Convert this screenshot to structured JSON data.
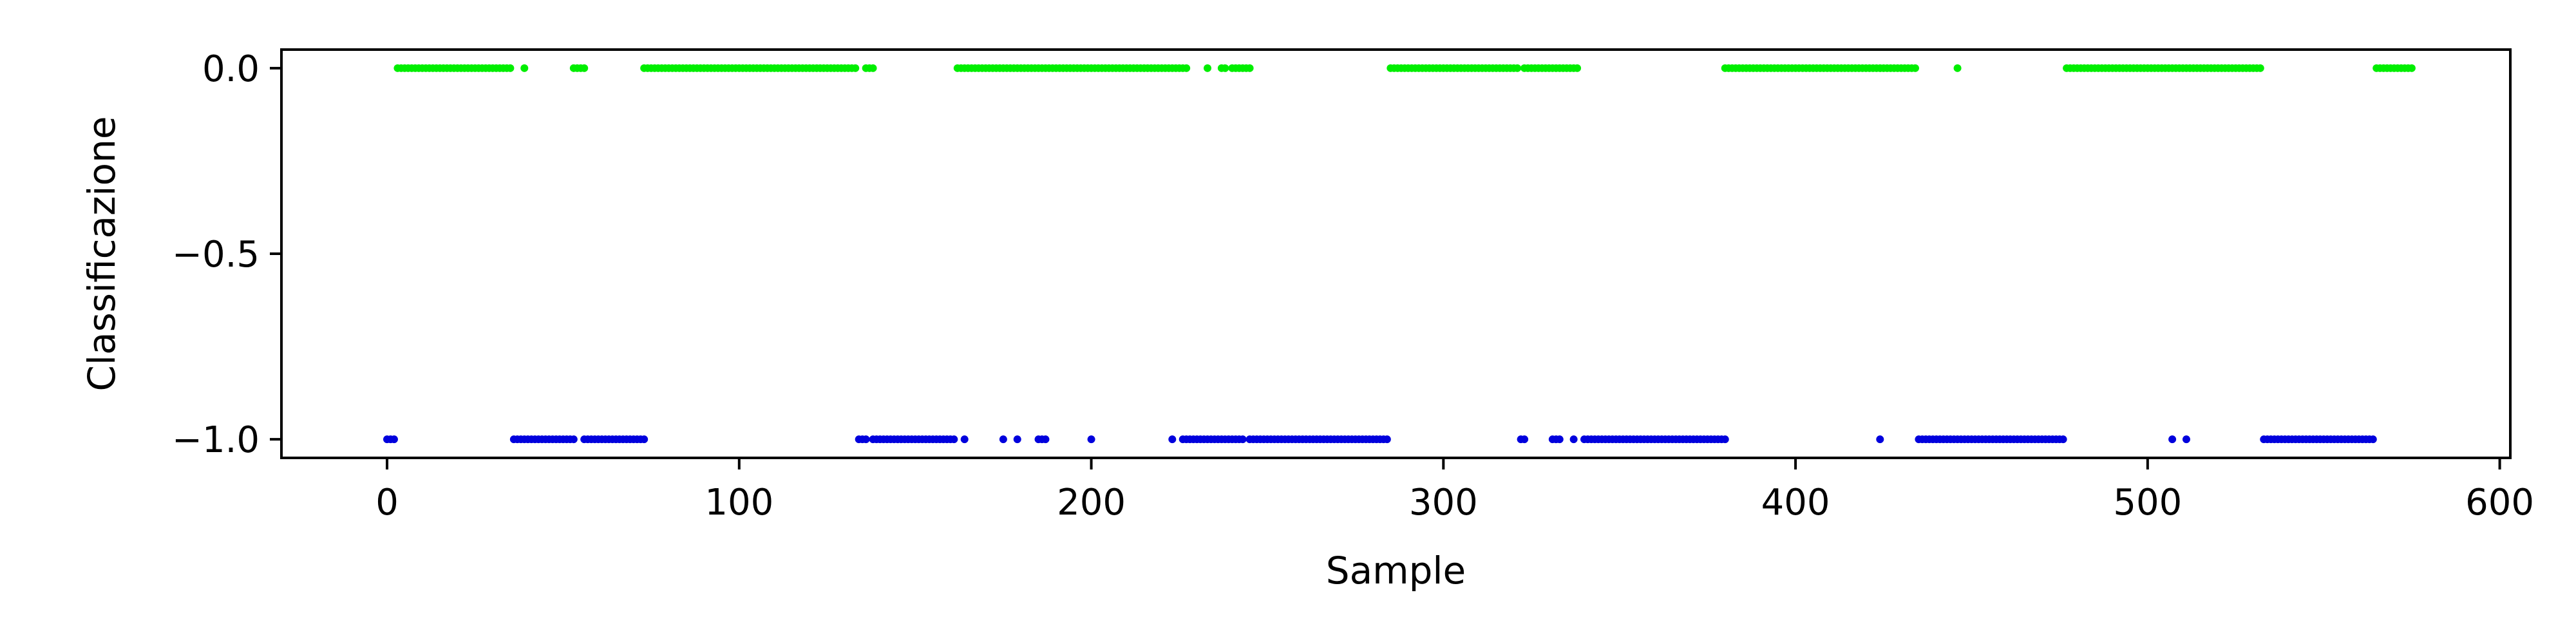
{
  "chart_data": {
    "type": "scatter",
    "title": "",
    "xlabel": "Sample",
    "ylabel": "Classificazione",
    "xlim": [
      -30,
      603
    ],
    "ylim": [
      -1.05,
      0.05
    ],
    "xticks": [
      0,
      100,
      200,
      300,
      400,
      500,
      600
    ],
    "yticks": [
      0.0,
      -0.5,
      -1.0
    ],
    "xtick_labels": [
      "0",
      "100",
      "200",
      "300",
      "400",
      "500",
      "600"
    ],
    "ytick_labels": [
      "0.0",
      "−0.5",
      "−1.0"
    ],
    "grid": false,
    "legend": "none",
    "series": [
      {
        "color": "#00ee00",
        "y": 0.0,
        "ranges": [
          [
            3,
            35
          ],
          [
            39,
            39
          ],
          [
            53,
            56
          ],
          [
            73,
            133
          ],
          [
            136,
            138
          ],
          [
            162,
            227
          ],
          [
            233,
            233
          ],
          [
            237,
            238
          ],
          [
            240,
            245
          ],
          [
            285,
            321
          ],
          [
            323,
            338
          ],
          [
            380,
            434
          ],
          [
            446,
            446
          ],
          [
            477,
            532
          ],
          [
            565,
            575
          ]
        ]
      },
      {
        "color": "#0000dd",
        "y": -1.0,
        "ranges": [
          [
            0,
            2
          ],
          [
            36,
            53
          ],
          [
            56,
            73
          ],
          [
            134,
            136
          ],
          [
            138,
            161
          ],
          [
            164,
            164
          ],
          [
            175,
            175
          ],
          [
            179,
            179
          ],
          [
            185,
            187
          ],
          [
            200,
            200
          ],
          [
            223,
            223
          ],
          [
            226,
            243
          ],
          [
            245,
            284
          ],
          [
            322,
            323
          ],
          [
            331,
            333
          ],
          [
            337,
            337
          ],
          [
            340,
            380
          ],
          [
            424,
            424
          ],
          [
            435,
            476
          ],
          [
            507,
            507
          ],
          [
            511,
            511
          ],
          [
            533,
            564
          ]
        ]
      }
    ]
  }
}
